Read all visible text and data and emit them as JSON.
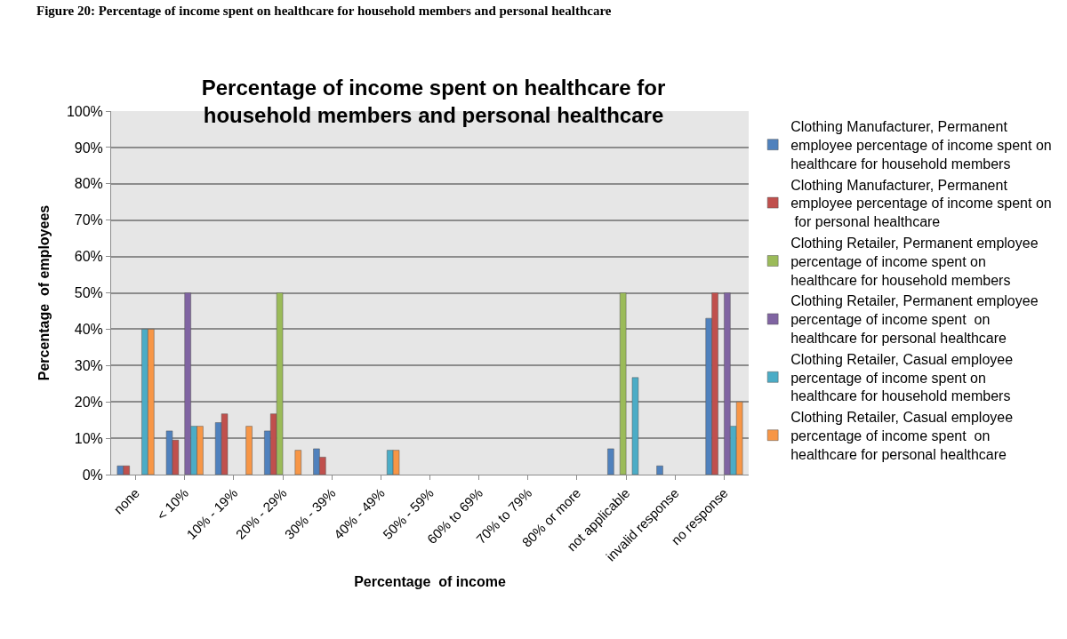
{
  "chart_data": {
    "type": "bar",
    "title": "Percentage of income spent on healthcare for household members and personal healthcare",
    "xlabel": "Percentage  of income",
    "ylabel": "Percentage  of employees",
    "annotations": [
      "Figure 20: Percentage of income spent on healthcare for household members and personal healthcare"
    ],
    "categories": [
      "none",
      "< 10%",
      "10% - 19%",
      "20% - 29%",
      "30% - 39%",
      "40% - 49%",
      "50% - 59%",
      "60% to 69%",
      "70% to 79%",
      "80% or more",
      "not applicable",
      "invalid response",
      "no response"
    ],
    "series": [
      {
        "name": "Clothing Manufacturer, Permanent employee percentage of income spent on healthcare for household members",
        "color": "#4f81bd",
        "values": [
          2.4,
          12,
          14.3,
          12,
          7.1,
          null,
          null,
          null,
          null,
          null,
          7.1,
          2.4,
          43
        ]
      },
      {
        "name": "Clothing Manufacturer, Permanent employee percentage of income spent on  for personal healthcare",
        "color": "#c0504d",
        "values": [
          2.4,
          9.5,
          16.7,
          16.7,
          4.8,
          null,
          null,
          null,
          null,
          null,
          null,
          null,
          50
        ]
      },
      {
        "name": "Clothing Retailer, Permanent employee percentage of income spent on healthcare for household members",
        "color": "#9bbb59",
        "values": [
          null,
          null,
          null,
          50,
          null,
          null,
          null,
          null,
          null,
          null,
          50,
          null,
          null
        ]
      },
      {
        "name": "Clothing Retailer, Permanent employee percentage of income spent  on healthcare for personal healthcare",
        "color": "#8064a2",
        "values": [
          null,
          50,
          null,
          null,
          null,
          null,
          null,
          null,
          null,
          null,
          null,
          null,
          50
        ]
      },
      {
        "name": "Clothing Retailer, Casual employee percentage of income spent on healthcare for household members",
        "color": "#4bacc6",
        "values": [
          40,
          13.3,
          null,
          null,
          null,
          6.7,
          null,
          null,
          null,
          null,
          26.7,
          null,
          13.3
        ]
      },
      {
        "name": "Clothing Retailer, Casual employee percentage of income spent  on healthcare for personal healthcare",
        "color": "#f79646",
        "values": [
          40,
          13.3,
          13.3,
          6.7,
          null,
          6.7,
          null,
          null,
          null,
          null,
          null,
          null,
          20
        ]
      }
    ],
    "ylim": [
      0,
      100
    ],
    "yticks": [
      {
        "value": 0,
        "label": "0%"
      },
      {
        "value": 10,
        "label": "10%"
      },
      {
        "value": 20,
        "label": "20%"
      },
      {
        "value": 30,
        "label": "30%"
      },
      {
        "value": 40,
        "label": "40%"
      },
      {
        "value": 50,
        "label": "50%"
      },
      {
        "value": 60,
        "label": "60%"
      },
      {
        "value": 70,
        "label": "70%"
      },
      {
        "value": 80,
        "label": "80%"
      },
      {
        "value": 90,
        "label": "90%"
      },
      {
        "value": 100,
        "label": "100%"
      }
    ],
    "grid": "y",
    "legend": "right"
  }
}
